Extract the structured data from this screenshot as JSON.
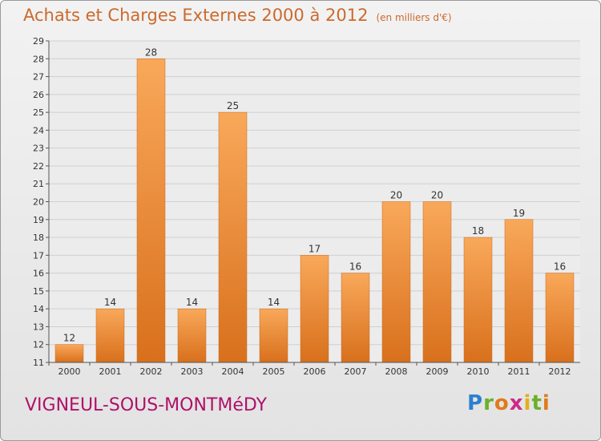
{
  "header": {
    "title": "Achats et Charges Externes 2000 à 2012",
    "unit": "(en milliers d'€)"
  },
  "footer": {
    "commune": "VIGNEUL-SOUS-MONTMéDY",
    "logo": "Proxiti"
  },
  "colors": {
    "title": "#cc6a2c",
    "commune": "#b0106a",
    "bar_light": "#f9a85a",
    "bar_dark": "#d8701c",
    "grid": "#d0d0d0"
  },
  "chart_data": {
    "type": "bar",
    "title": "Achats et Charges Externes 2000 à 2012",
    "subtitle": "(en milliers d'€)",
    "xlabel": "",
    "ylabel": "",
    "categories": [
      "2000",
      "2001",
      "2002",
      "2003",
      "2004",
      "2005",
      "2006",
      "2007",
      "2008",
      "2009",
      "2010",
      "2011",
      "2012"
    ],
    "values": [
      12,
      14,
      28,
      14,
      25,
      14,
      17,
      16,
      20,
      20,
      18,
      19,
      16
    ],
    "ylim": [
      11,
      29
    ],
    "yticks": [
      11,
      12,
      13,
      14,
      15,
      16,
      17,
      18,
      19,
      20,
      21,
      22,
      23,
      24,
      25,
      26,
      27,
      28,
      29
    ],
    "grid": true,
    "legend": "none"
  }
}
